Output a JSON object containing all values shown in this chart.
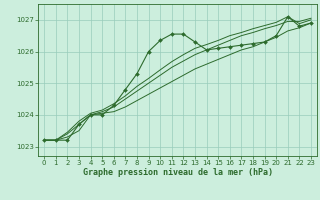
{
  "title": "Graphe pression niveau de la mer (hPa)",
  "background_color": "#cceedd",
  "grid_color": "#99ccbb",
  "line_color": "#2d6b2d",
  "xlim": [
    -0.5,
    23.5
  ],
  "ylim": [
    1022.7,
    1027.5
  ],
  "yticks": [
    1023,
    1024,
    1025,
    1026,
    1027
  ],
  "xticks": [
    0,
    1,
    2,
    3,
    4,
    5,
    6,
    7,
    8,
    9,
    10,
    11,
    12,
    13,
    14,
    15,
    16,
    17,
    18,
    19,
    20,
    21,
    22,
    23
  ],
  "main_series": [
    1023.2,
    1023.2,
    1023.2,
    1023.7,
    1024.0,
    1024.0,
    1024.3,
    1024.8,
    1025.3,
    1026.0,
    1026.35,
    1026.55,
    1026.55,
    1026.3,
    1026.05,
    1026.1,
    1026.15,
    1026.2,
    1026.25,
    1026.3,
    1026.5,
    1027.1,
    1026.8,
    1026.9
  ],
  "line2_series": [
    1023.2,
    1023.2,
    1023.3,
    1023.5,
    1024.0,
    1024.05,
    1024.1,
    1024.25,
    1024.45,
    1024.65,
    1024.85,
    1025.05,
    1025.25,
    1025.45,
    1025.6,
    1025.75,
    1025.9,
    1026.05,
    1026.15,
    1026.3,
    1026.45,
    1026.65,
    1026.75,
    1026.9
  ],
  "line3_series": [
    1023.2,
    1023.2,
    1023.4,
    1023.7,
    1024.0,
    1024.1,
    1024.25,
    1024.5,
    1024.75,
    1025.0,
    1025.25,
    1025.5,
    1025.7,
    1025.9,
    1026.05,
    1026.2,
    1026.35,
    1026.5,
    1026.6,
    1026.72,
    1026.82,
    1026.95,
    1026.95,
    1027.05
  ],
  "line4_series": [
    1023.2,
    1023.2,
    1023.45,
    1023.8,
    1024.05,
    1024.15,
    1024.35,
    1024.6,
    1024.9,
    1025.15,
    1025.42,
    1025.68,
    1025.9,
    1026.1,
    1026.22,
    1026.35,
    1026.5,
    1026.6,
    1026.72,
    1026.82,
    1026.92,
    1027.1,
    1026.88,
    1027.0
  ]
}
